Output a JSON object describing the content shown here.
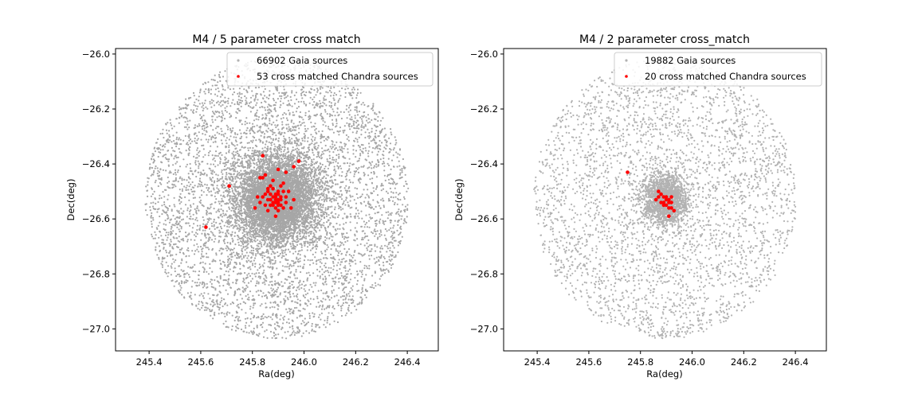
{
  "figure": {
    "panels": [
      {
        "title": "M4 / 5 parameter cross match",
        "xlabel": "Ra(deg)",
        "ylabel": "Dec(deg)",
        "legend": [
          "66902 Gaia sources",
          "53 cross matched Chandra sources"
        ]
      },
      {
        "title": "M4 / 2 parameter cross_match",
        "xlabel": "Ra(deg)",
        "ylabel": "Dec(deg)",
        "legend": [
          "19882 Gaia sources",
          "20 cross matched Chandra sources"
        ]
      }
    ]
  },
  "chart_data": [
    {
      "type": "scatter",
      "title": "M4 / 5 parameter cross match",
      "xlabel": "Ra(deg)",
      "ylabel": "Dec(deg)",
      "xlim": [
        245.27,
        246.52
      ],
      "ylim": [
        -27.08,
        -25.98
      ],
      "xticks": [
        245.4,
        245.6,
        245.8,
        246.0,
        246.2,
        246.4
      ],
      "xticklabels": [
        "245.4",
        "245.6",
        "245.8",
        "246.0",
        "246.2",
        "246.4"
      ],
      "yticks": [
        -26.0,
        -26.2,
        -26.4,
        -26.6,
        -26.8,
        -27.0
      ],
      "yticklabels": [
        "−26.0",
        "−26.2",
        "−26.4",
        "−26.6",
        "−26.8",
        "−27.0"
      ],
      "legend_position": "top-right",
      "grid": false,
      "series": [
        {
          "name": "66902 Gaia sources",
          "color": "#000000",
          "distribution": {
            "shape": "disk",
            "center": [
              245.895,
              -26.526
            ],
            "radius_deg": 0.51,
            "concentrated_core": true
          },
          "count": 66902
        },
        {
          "name": "53 cross matched Chandra sources",
          "color": "#ff0000",
          "points": [
            [
              245.62,
              -26.63
            ],
            [
              245.71,
              -26.48
            ],
            [
              245.84,
              -26.37
            ],
            [
              245.98,
              -26.39
            ],
            [
              245.93,
              -26.43
            ],
            [
              245.96,
              -26.41
            ],
            [
              245.84,
              -26.45
            ],
            [
              245.83,
              -26.45
            ],
            [
              245.85,
              -26.44
            ],
            [
              245.9,
              -26.42
            ],
            [
              245.88,
              -26.46
            ],
            [
              245.92,
              -26.47
            ],
            [
              245.86,
              -26.49
            ],
            [
              245.94,
              -26.5
            ],
            [
              245.82,
              -26.52
            ],
            [
              245.96,
              -26.53
            ],
            [
              245.81,
              -26.56
            ],
            [
              245.83,
              -26.54
            ],
            [
              245.87,
              -26.51
            ],
            [
              245.88,
              -26.52
            ],
            [
              245.89,
              -26.53
            ],
            [
              245.9,
              -26.54
            ],
            [
              245.91,
              -26.52
            ],
            [
              245.89,
              -26.51
            ],
            [
              245.88,
              -26.55
            ],
            [
              245.91,
              -26.55
            ],
            [
              245.9,
              -26.51
            ],
            [
              245.87,
              -26.53
            ],
            [
              245.86,
              -26.5
            ],
            [
              245.93,
              -26.52
            ],
            [
              245.88,
              -26.49
            ],
            [
              245.92,
              -26.5
            ],
            [
              245.95,
              -26.56
            ],
            [
              245.9,
              -26.57
            ],
            [
              245.86,
              -26.57
            ],
            [
              245.89,
              -26.59
            ],
            [
              245.84,
              -26.52
            ],
            [
              245.85,
              -26.55
            ],
            [
              245.87,
              -26.48
            ],
            [
              245.91,
              -26.48
            ],
            [
              245.92,
              -26.56
            ],
            [
              245.89,
              -26.56
            ],
            [
              245.9,
              -26.5
            ],
            [
              245.88,
              -26.54
            ],
            [
              245.86,
              -26.53
            ],
            [
              245.91,
              -26.53
            ],
            [
              245.89,
              -26.52
            ],
            [
              245.9,
              -26.53
            ],
            [
              245.87,
              -26.55
            ],
            [
              245.93,
              -26.54
            ],
            [
              245.85,
              -26.51
            ],
            [
              245.89,
              -26.54
            ],
            [
              245.9,
              -26.55
            ]
          ]
        }
      ]
    },
    {
      "type": "scatter",
      "title": "M4 / 2 parameter cross_match",
      "xlabel": "Ra(deg)",
      "ylabel": "Dec(deg)",
      "xlim": [
        245.27,
        246.52
      ],
      "ylim": [
        -27.08,
        -25.98
      ],
      "xticks": [
        245.4,
        245.6,
        245.8,
        246.0,
        246.2,
        246.4
      ],
      "xticklabels": [
        "245.4",
        "245.6",
        "245.8",
        "246.0",
        "246.2",
        "246.4"
      ],
      "yticks": [
        -26.0,
        -26.2,
        -26.4,
        -26.6,
        -26.8,
        -27.0
      ],
      "yticklabels": [
        "−26.0",
        "−26.2",
        "−26.4",
        "−26.6",
        "−26.8",
        "−27.0"
      ],
      "legend_position": "top-right",
      "grid": false,
      "series": [
        {
          "name": "19882 Gaia sources",
          "color": "#000000",
          "distribution": {
            "shape": "disk",
            "center": [
              245.895,
              -26.526
            ],
            "radius_deg": 0.51,
            "concentrated_core": true
          },
          "count": 19882
        },
        {
          "name": "20 cross matched Chandra sources",
          "color": "#ff0000",
          "points": [
            [
              245.75,
              -26.43
            ],
            [
              245.87,
              -26.5
            ],
            [
              245.88,
              -26.51
            ],
            [
              245.87,
              -26.52
            ],
            [
              245.89,
              -26.52
            ],
            [
              245.9,
              -26.53
            ],
            [
              245.91,
              -26.53
            ],
            [
              245.92,
              -26.52
            ],
            [
              245.9,
              -26.55
            ],
            [
              245.91,
              -26.56
            ],
            [
              245.92,
              -26.56
            ],
            [
              245.93,
              -26.57
            ],
            [
              245.91,
              -26.59
            ],
            [
              245.88,
              -26.54
            ],
            [
              245.89,
              -26.54
            ],
            [
              245.86,
              -26.53
            ],
            [
              245.9,
              -26.52
            ],
            [
              245.92,
              -26.54
            ],
            [
              245.91,
              -26.54
            ],
            [
              245.89,
              -26.55
            ]
          ]
        }
      ]
    }
  ]
}
